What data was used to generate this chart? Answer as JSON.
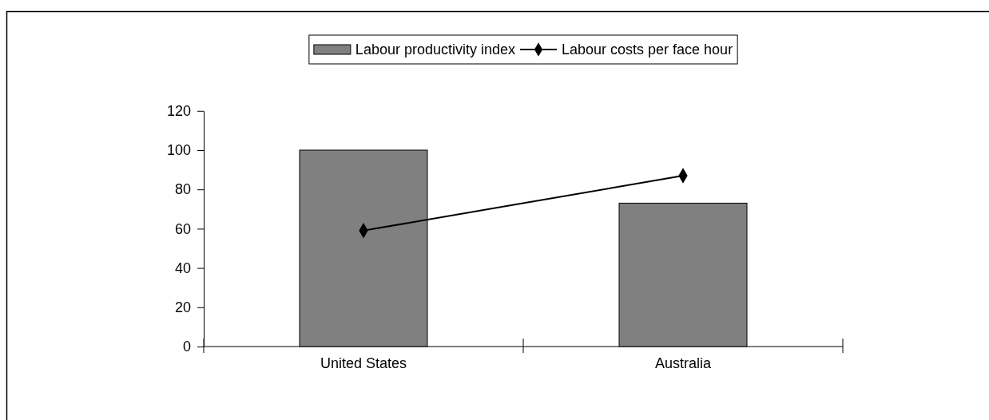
{
  "chart_data": {
    "type": "bar",
    "categories": [
      "United States",
      "Australia"
    ],
    "series": [
      {
        "name": "Labour productivity index",
        "color": "#808080",
        "values": [
          100,
          73
        ]
      },
      {
        "name": "Labour costs per face hour",
        "type": "line",
        "color": "#000000",
        "values": [
          59,
          87
        ]
      }
    ],
    "ylim": [
      0,
      120
    ],
    "yticks": [
      0,
      20,
      40,
      60,
      80,
      100,
      120
    ],
    "legend": "top",
    "marker": "diamond",
    "grid": false
  }
}
